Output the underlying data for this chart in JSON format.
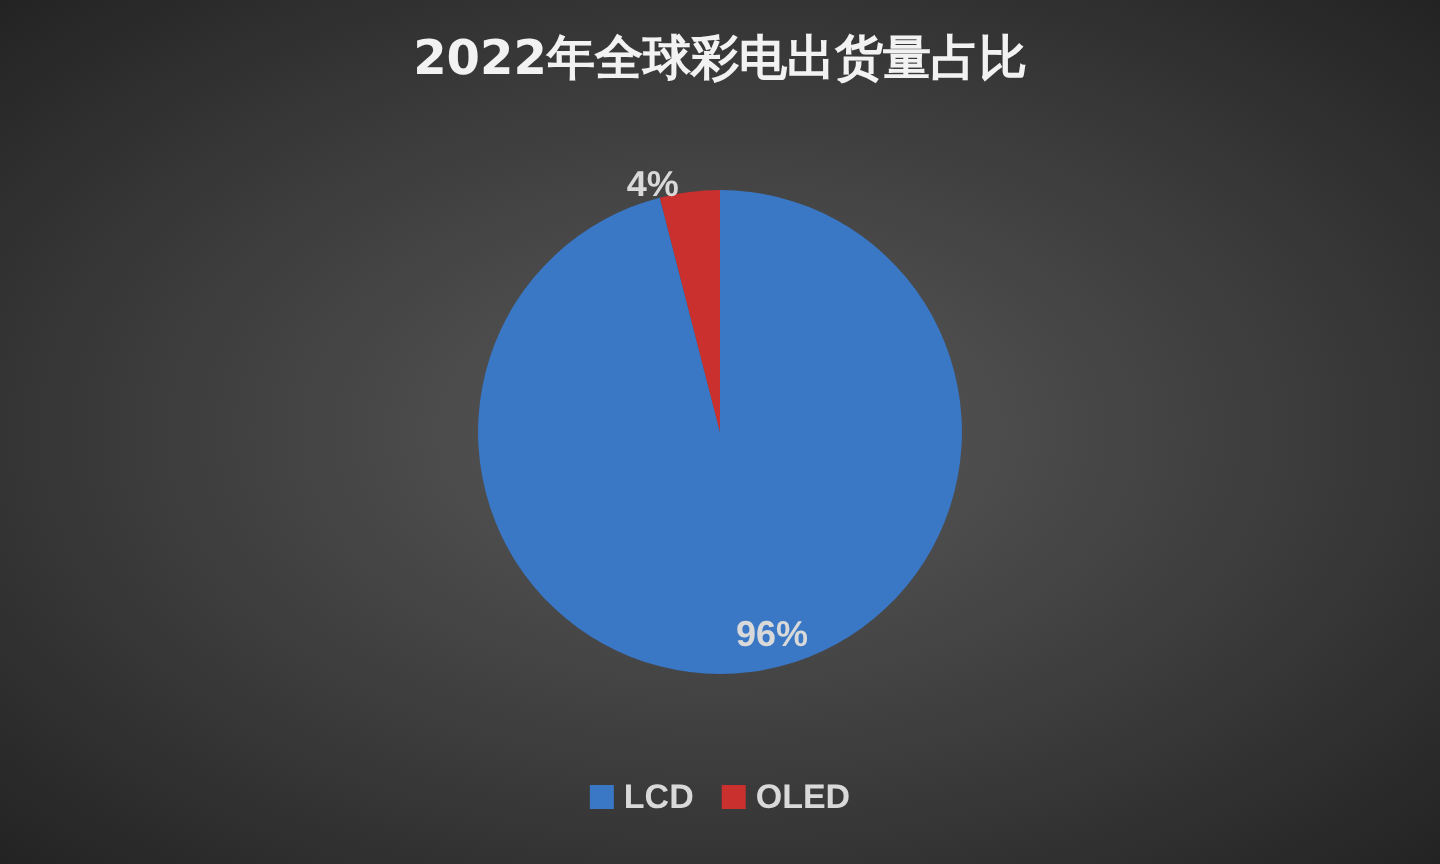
{
  "chart_data": {
    "type": "pie",
    "title": "2022年全球彩电出货量占比",
    "categories": [
      "LCD",
      "OLED"
    ],
    "values": [
      96,
      4
    ],
    "colors": [
      "#3a78c6",
      "#c9302e"
    ],
    "value_labels": [
      "96%",
      "4%"
    ],
    "legend": "bottom"
  }
}
